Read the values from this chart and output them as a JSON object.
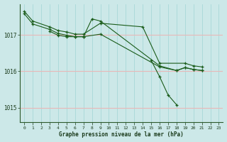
{
  "xlabel": "Graphe pression niveau de la mer (hPa)",
  "bg_color": "#cce8e8",
  "grid_color_h": "#e8b8b8",
  "grid_color_v": "#a8d8d8",
  "line_color": "#1a5c1a",
  "xlim": [
    -0.5,
    23.5
  ],
  "ylim": [
    1014.6,
    1017.85
  ],
  "yticks": [
    1015,
    1016,
    1017
  ],
  "xticks": [
    0,
    1,
    2,
    3,
    4,
    5,
    6,
    7,
    8,
    9,
    10,
    11,
    12,
    13,
    14,
    15,
    16,
    17,
    18,
    19,
    20,
    21,
    22,
    23
  ],
  "series": [
    {
      "x": [
        0,
        1,
        3,
        4,
        5,
        6,
        7,
        9,
        14,
        16,
        19,
        20,
        21
      ],
      "y": [
        1017.65,
        1017.38,
        1017.22,
        1017.12,
        1017.08,
        1017.02,
        1017.02,
        1017.32,
        1017.22,
        1016.22,
        1016.22,
        1016.15,
        1016.12
      ]
    },
    {
      "x": [
        0,
        1,
        3,
        4,
        5,
        6,
        7,
        9,
        16,
        18,
        19,
        20,
        21
      ],
      "y": [
        1017.58,
        1017.3,
        1017.15,
        1017.04,
        1016.99,
        1016.95,
        1016.95,
        1017.02,
        1016.12,
        1016.02,
        1016.1,
        1016.05,
        1016.02
      ]
    },
    {
      "x": [
        3,
        4,
        5,
        6,
        7,
        8,
        9,
        16,
        18,
        19,
        20,
        21
      ],
      "y": [
        1017.1,
        1016.99,
        1016.95,
        1016.95,
        1016.95,
        1017.44,
        1017.38,
        1016.15,
        1016.02,
        1016.1,
        1016.05,
        1016.02
      ]
    },
    {
      "x": [
        15,
        16,
        17,
        18
      ],
      "y": [
        1016.3,
        1015.85,
        1015.35,
        1015.08
      ]
    }
  ]
}
